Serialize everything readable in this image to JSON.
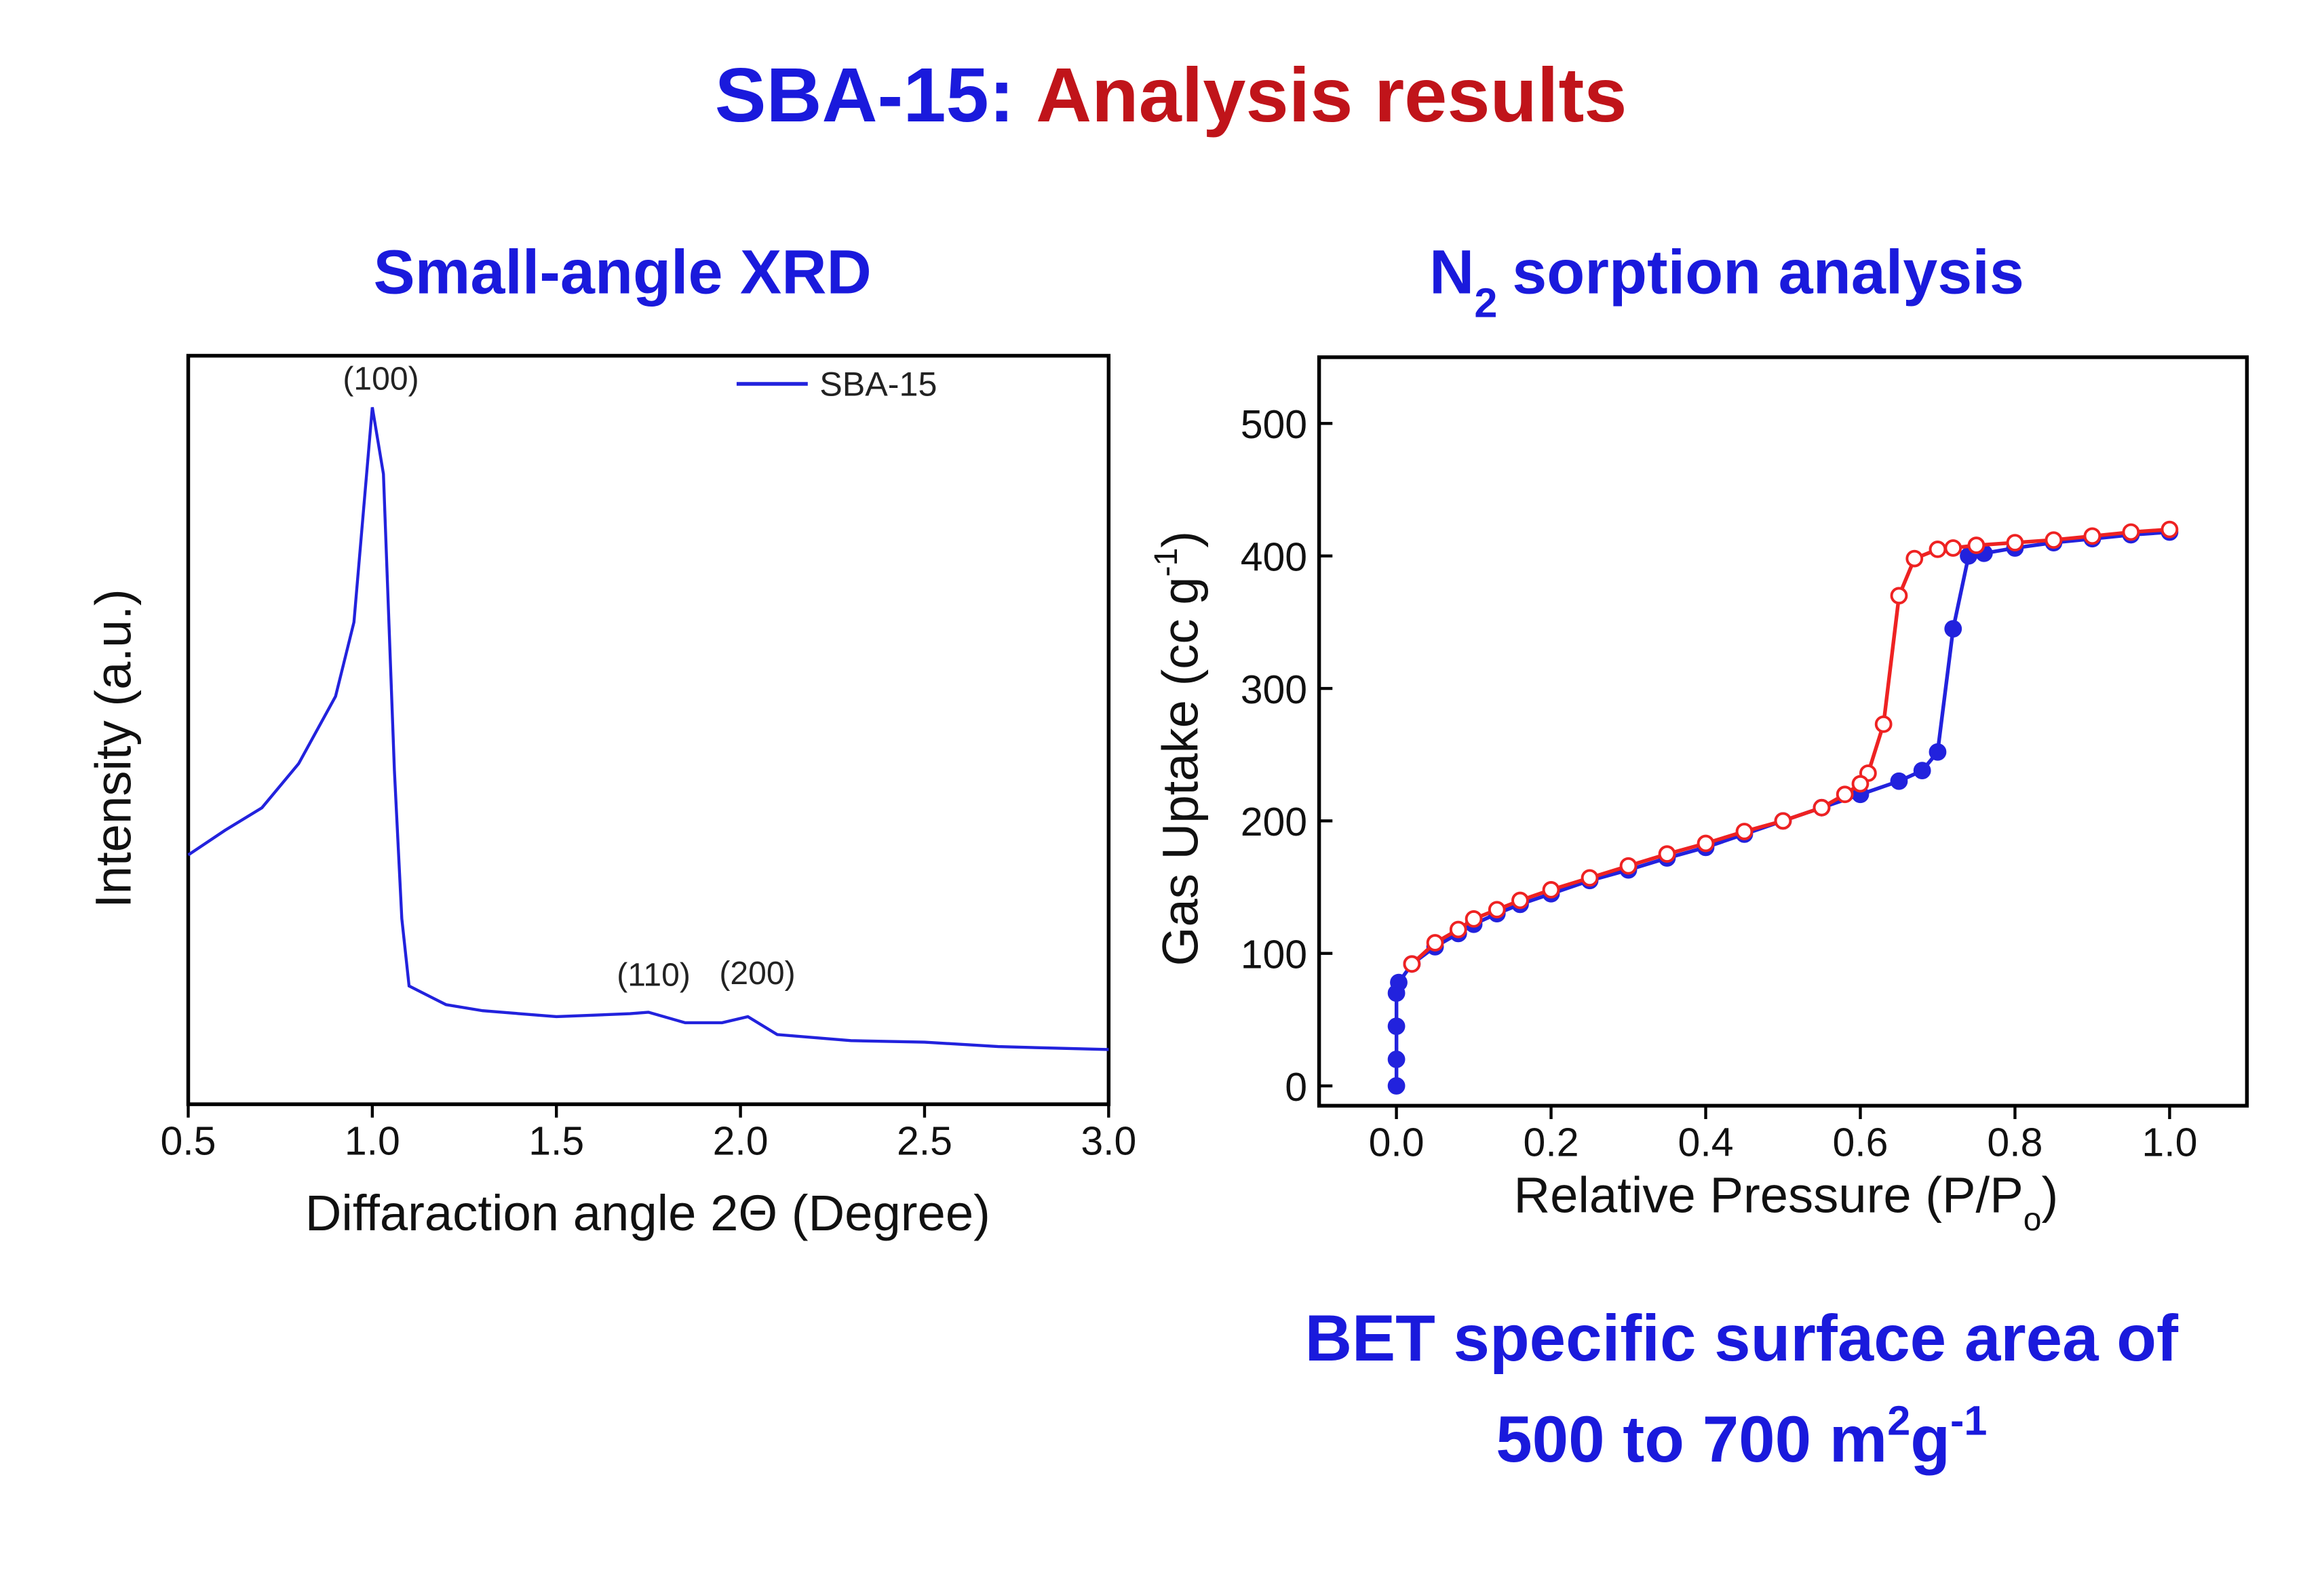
{
  "slide": {
    "title": [
      "SBA-15:",
      "Analysis results"
    ],
    "note": [
      "BET specific surface area of",
      "500 to 700 m",
      "2",
      "g",
      "-1"
    ]
  },
  "chart_data": [
    {
      "type": "line",
      "title": "Small-angle XRD",
      "xlabel": "Diffaraction angle 2Θ (Degree)",
      "ylabel": "Intensity (a.u.)",
      "xlim": [
        0.5,
        3.0
      ],
      "ylim": [
        0,
        100
      ],
      "xticks": [
        0.5,
        {
          "value": 1,
          "label": "1.0"
        },
        1.5,
        {
          "value": 2,
          "label": "2.0"
        },
        2.5,
        {
          "value": 3,
          "label": "3.0"
        }
      ],
      "legend": "upper-right",
      "annotations": [
        "(100)",
        "(110)",
        "(200)"
      ],
      "x": [
        0.5,
        0.6,
        0.7,
        0.8,
        0.9,
        0.95,
        1.0,
        1.03,
        1.06,
        1.08,
        1.1,
        1.2,
        1.3,
        1.5,
        1.7,
        1.75,
        1.85,
        1.95,
        2.02,
        2.1,
        2.3,
        2.5,
        2.7,
        3.0
      ],
      "series": [
        {
          "name": "SBA-15",
          "color": "#2222dd",
          "values": [
            33.3,
            36.6,
            39.6,
            45.5,
            54.5,
            64.4,
            93.1,
            84.2,
            44.6,
            24.8,
            15.8,
            13.3,
            12.5,
            11.7,
            12.1,
            12.3,
            10.9,
            10.9,
            11.7,
            9.3,
            8.5,
            8.3,
            7.7,
            7.3
          ]
        }
      ]
    },
    {
      "type": "line",
      "title": [
        "N",
        "2",
        "sorption analysis"
      ],
      "xlabel": [
        "Relative Pressure (P/P",
        "o",
        ")"
      ],
      "ylabel": [
        "Gas Uptake (cc g",
        "-1",
        ")"
      ],
      "xlim": [
        -0.1,
        1.1
      ],
      "ylim": [
        -15,
        550
      ],
      "xticks": [
        {
          "value": 0,
          "label": "0.0"
        },
        0.2,
        0.4,
        0.6,
        0.8,
        {
          "value": 1,
          "label": "1.0"
        }
      ],
      "yticks": [
        0,
        100,
        200,
        300,
        400,
        500
      ],
      "series": [
        {
          "color": "#2222dd",
          "marker": "filled",
          "x": [
            0,
            0,
            0,
            0,
            0.003,
            0.02,
            0.05,
            0.08,
            0.1,
            0.13,
            0.16,
            0.2,
            0.25,
            0.3,
            0.35,
            0.4,
            0.45,
            0.5,
            0.55,
            0.6,
            0.65,
            0.68,
            0.7,
            0.72,
            0.74,
            0.76,
            0.8,
            0.85,
            0.9,
            0.95,
            1.0
          ],
          "values": [
            0,
            20,
            45,
            70,
            78,
            92,
            105,
            115,
            122,
            130,
            137,
            145,
            155,
            163,
            172,
            180,
            190,
            200,
            210,
            220,
            230,
            238,
            252,
            345,
            400,
            402,
            406,
            410,
            413,
            416,
            418
          ]
        },
        {
          "color": "#ee2222",
          "marker": "open",
          "x": [
            1.0,
            0.95,
            0.9,
            0.85,
            0.8,
            0.75,
            0.72,
            0.7,
            0.67,
            0.65,
            0.63,
            0.61,
            0.6,
            0.58,
            0.55,
            0.5,
            0.45,
            0.4,
            0.35,
            0.3,
            0.25,
            0.2,
            0.16,
            0.13,
            0.1,
            0.08,
            0.05,
            0.02
          ],
          "values": [
            420,
            418,
            415,
            412,
            410,
            408,
            406,
            405,
            398,
            370,
            273,
            236,
            228,
            220,
            210,
            200,
            192,
            183,
            175,
            166,
            157,
            148,
            140,
            133,
            126,
            118,
            108,
            92
          ]
        }
      ]
    }
  ]
}
